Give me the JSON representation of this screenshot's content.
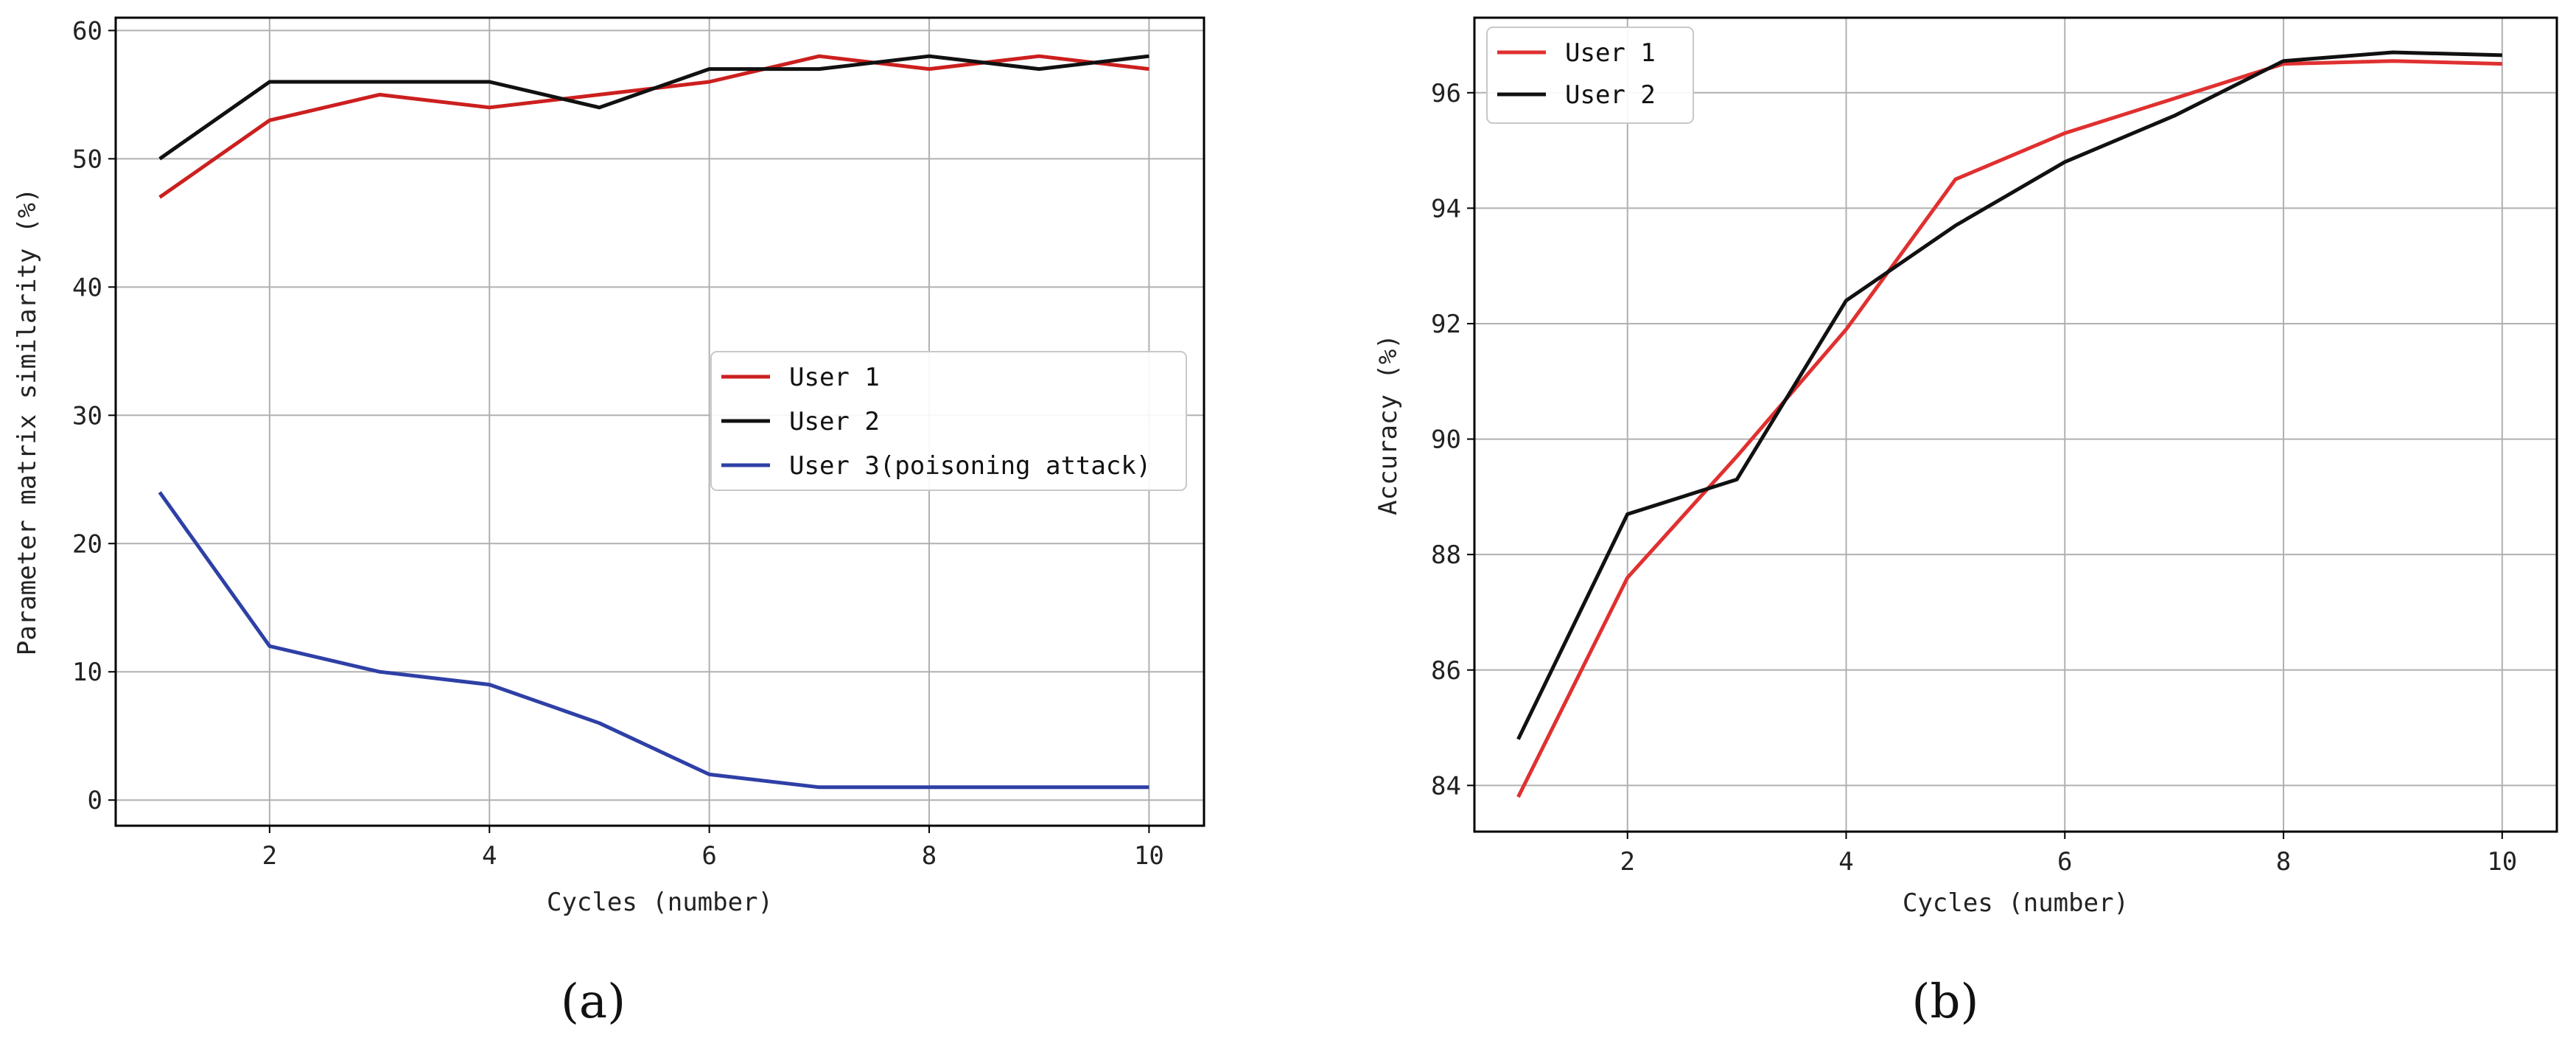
{
  "chart_data": [
    {
      "type": "line",
      "caption": "(a)",
      "xlabel": "Cycles (number)",
      "ylabel": "Parameter matrix similarity (%)",
      "xlim": [
        0.6,
        10.5
      ],
      "ylim": [
        -2,
        61
      ],
      "xticks": [
        2,
        4,
        6,
        8,
        10
      ],
      "yticks": [
        0,
        10,
        20,
        30,
        40,
        50,
        60
      ],
      "grid": true,
      "legend_position": "center-right",
      "x": [
        1,
        2,
        3,
        4,
        5,
        6,
        7,
        8,
        9,
        10
      ],
      "series": [
        {
          "name": "User 1",
          "color": "#cc1f1f",
          "values": [
            47,
            53,
            55,
            54,
            55,
            56,
            58,
            57,
            58,
            57
          ]
        },
        {
          "name": "User 2",
          "color": "#111111",
          "values": [
            50,
            56,
            56,
            56,
            54,
            57,
            57,
            58,
            57,
            58
          ]
        },
        {
          "name": "User 3(poisoning attack)",
          "color": "#2e40a6",
          "values": [
            24,
            12,
            10,
            9,
            6,
            2,
            1,
            1,
            1,
            1
          ]
        }
      ]
    },
    {
      "type": "line",
      "caption": "(b)",
      "xlabel": "Cycles (number)",
      "ylabel": "Accuracy (%)",
      "xlim": [
        0.6,
        10.5
      ],
      "ylim": [
        83.2,
        97.3
      ],
      "xticks": [
        2,
        4,
        6,
        8,
        10
      ],
      "yticks": [
        84,
        86,
        88,
        90,
        92,
        94,
        96
      ],
      "grid": true,
      "legend_position": "top-left",
      "x": [
        1,
        2,
        3,
        4,
        5,
        6,
        7,
        8,
        9,
        10
      ],
      "series": [
        {
          "name": "User 1",
          "color": "#e03030",
          "values": [
            83.8,
            87.6,
            89.7,
            91.9,
            94.5,
            95.3,
            95.9,
            96.5,
            96.55,
            96.5
          ]
        },
        {
          "name": "User 2",
          "color": "#111111",
          "values": [
            84.8,
            88.7,
            89.3,
            92.4,
            93.7,
            94.8,
            95.6,
            96.55,
            96.7,
            96.65
          ]
        }
      ]
    }
  ]
}
